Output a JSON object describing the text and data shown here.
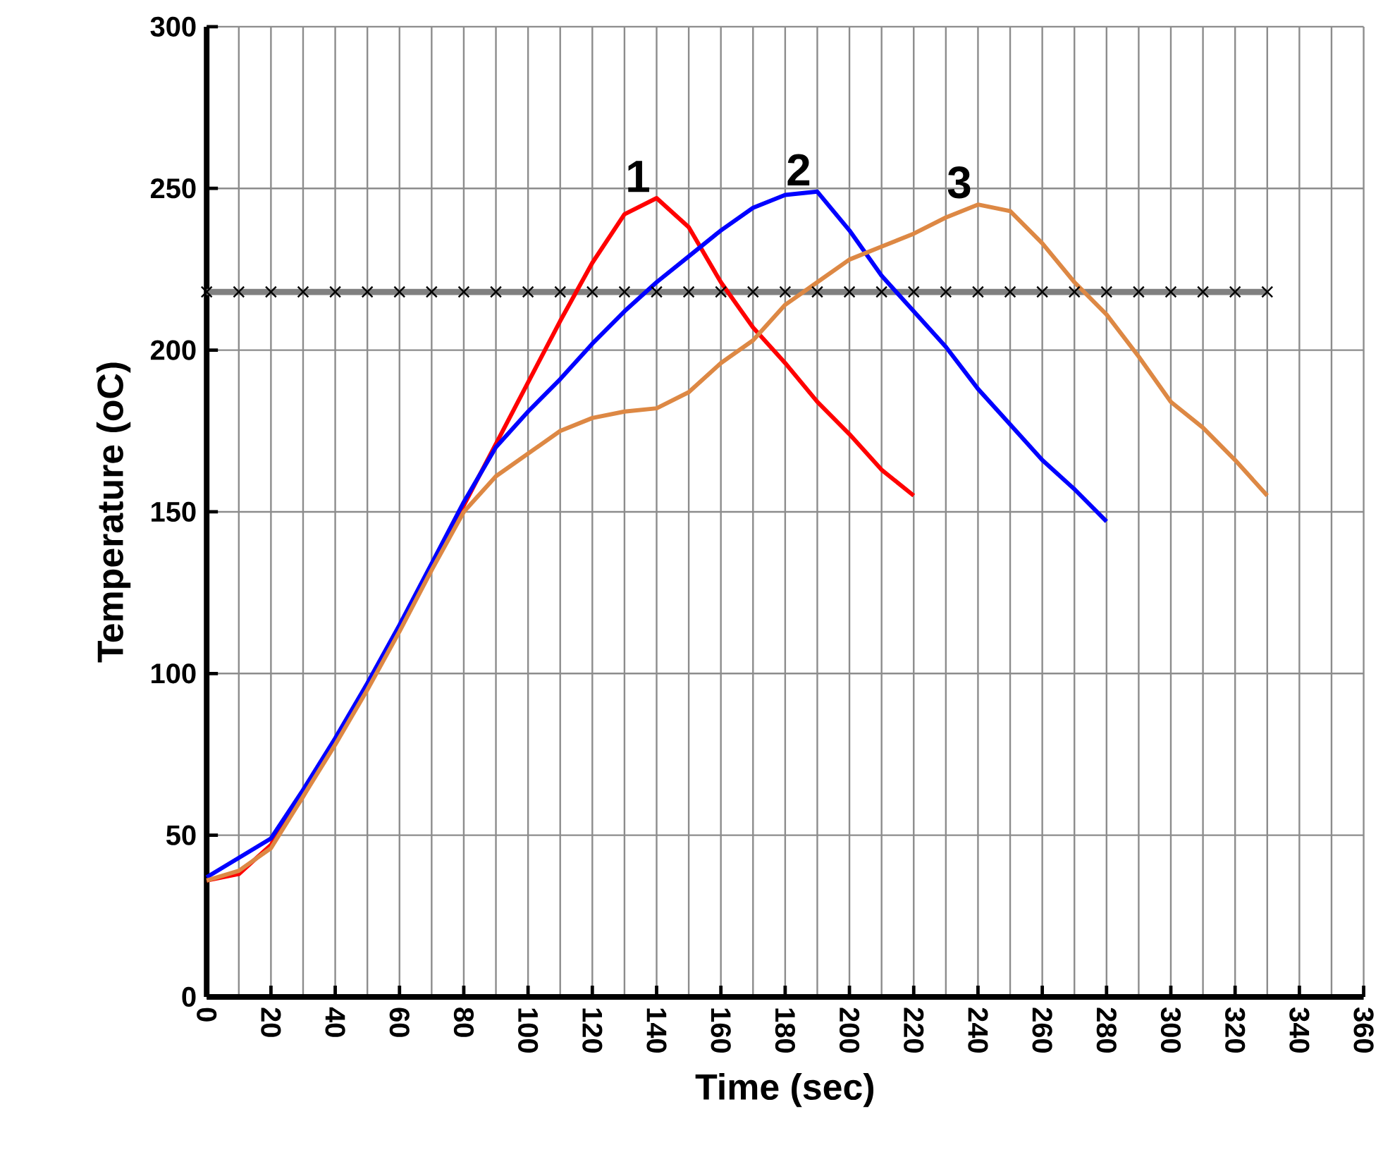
{
  "chart_data": {
    "type": "line",
    "xlabel": "Time (sec)",
    "ylabel": "Temperature (oC)",
    "xlim": [
      0,
      360
    ],
    "xticks": [
      0,
      20,
      40,
      60,
      80,
      100,
      120,
      140,
      160,
      180,
      200,
      220,
      240,
      260,
      280,
      300,
      320,
      340,
      360
    ],
    "ylim": [
      0,
      300
    ],
    "yticks": [
      0,
      50,
      100,
      150,
      200,
      250,
      300
    ],
    "grid": true,
    "line_style": "solid",
    "series": [
      {
        "color": "#808080",
        "marker": "cross",
        "x": [
          0,
          10,
          20,
          30,
          40,
          50,
          60,
          70,
          80,
          90,
          100,
          110,
          120,
          130,
          140,
          150,
          160,
          170,
          180,
          190,
          200,
          210,
          220,
          230,
          240,
          250,
          260,
          270,
          280,
          290,
          300,
          310,
          320,
          330
        ],
        "values": [
          218,
          218,
          218,
          218,
          218,
          218,
          218,
          218,
          218,
          218,
          218,
          218,
          218,
          218,
          218,
          218,
          218,
          218,
          218,
          218,
          218,
          218,
          218,
          218,
          218,
          218,
          218,
          218,
          218,
          218,
          218,
          218,
          218,
          218
        ]
      },
      {
        "name": "1",
        "color": "#ff0000",
        "x": [
          0,
          10,
          20,
          30,
          40,
          50,
          60,
          70,
          80,
          90,
          100,
          110,
          120,
          130,
          140,
          150,
          160,
          170,
          180,
          190,
          200,
          210,
          220
        ],
        "values": [
          36,
          38,
          47,
          62,
          79,
          96,
          114,
          133,
          152,
          171,
          190,
          209,
          227,
          242,
          247,
          238,
          221,
          207,
          196,
          184,
          174,
          163,
          155
        ]
      },
      {
        "name": "2",
        "color": "#0000ff",
        "x": [
          0,
          10,
          20,
          30,
          40,
          50,
          60,
          70,
          80,
          90,
          100,
          110,
          120,
          130,
          140,
          150,
          160,
          170,
          180,
          190,
          200,
          210,
          220,
          230,
          240,
          250,
          260,
          270,
          280
        ],
        "values": [
          37,
          43,
          49,
          64,
          80,
          97,
          115,
          134,
          153,
          170,
          181,
          191,
          202,
          212,
          221,
          229,
          237,
          244,
          248,
          249,
          237,
          223,
          212,
          201,
          188,
          177,
          166,
          157,
          147
        ]
      },
      {
        "name": "3",
        "color": "#dd8844",
        "x": [
          0,
          10,
          20,
          30,
          40,
          50,
          60,
          70,
          80,
          90,
          100,
          110,
          120,
          130,
          140,
          150,
          160,
          170,
          180,
          190,
          200,
          210,
          220,
          230,
          240,
          250,
          260,
          270,
          280,
          290,
          300,
          310,
          320,
          330
        ],
        "values": [
          36,
          39,
          46,
          62,
          78,
          95,
          113,
          132,
          150,
          161,
          168,
          175,
          179,
          181,
          182,
          187,
          196,
          203,
          214,
          221,
          228,
          232,
          236,
          241,
          245,
          243,
          233,
          221,
          211,
          198,
          184,
          176,
          166,
          155
        ]
      }
    ]
  }
}
